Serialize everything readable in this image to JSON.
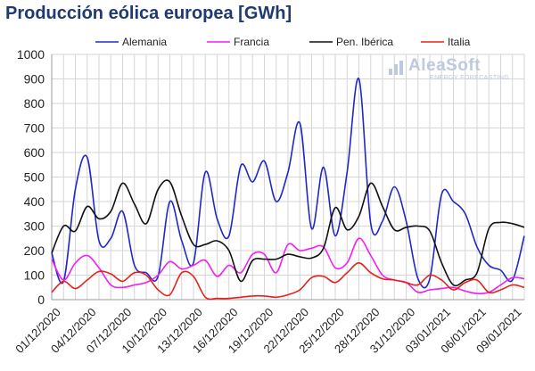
{
  "title": "Producción eólica europea [GWh]",
  "logo": {
    "name": "AleaSoft",
    "tagline": "ENERGY FORECASTING"
  },
  "colors": {
    "alemania": "#2028c8",
    "francia": "#f21ef2",
    "iberica": "#111111",
    "italia": "#e8201a",
    "grid": "#d6d6d6",
    "axis": "#999999",
    "logo": "#bcc9de"
  },
  "chart_data": {
    "type": "line",
    "title": "Producción eólica europea [GWh]",
    "xlabel": "",
    "ylabel": "",
    "ylim": [
      0,
      1000
    ],
    "yticks": [
      0,
      100,
      200,
      300,
      400,
      500,
      600,
      700,
      800,
      900,
      1000
    ],
    "x": [
      "01/12/2020",
      "02/12/2020",
      "03/12/2020",
      "04/12/2020",
      "05/12/2020",
      "06/12/2020",
      "07/12/2020",
      "08/12/2020",
      "09/12/2020",
      "10/12/2020",
      "11/12/2020",
      "12/12/2020",
      "13/12/2020",
      "14/12/2020",
      "15/12/2020",
      "16/12/2020",
      "17/12/2020",
      "18/12/2020",
      "19/12/2020",
      "20/12/2020",
      "21/12/2020",
      "22/12/2020",
      "23/12/2020",
      "24/12/2020",
      "25/12/2020",
      "26/12/2020",
      "27/12/2020",
      "28/12/2020",
      "29/12/2020",
      "30/12/2020",
      "31/12/2020",
      "01/01/2021",
      "02/01/2021",
      "03/01/2021",
      "04/01/2021",
      "05/01/2021",
      "06/01/2021",
      "07/01/2021",
      "08/01/2021",
      "09/01/2021",
      "10/01/2021"
    ],
    "xtick_labels": [
      "01/12/2020",
      "04/12/2020",
      "07/12/2020",
      "10/12/2020",
      "13/12/2020",
      "16/12/2020",
      "19/12/2020",
      "22/12/2020",
      "25/12/2020",
      "28/12/2020",
      "31/12/2020",
      "03/01/2021",
      "06/01/2021",
      "09/01/2021"
    ],
    "grid": true,
    "legend_position": "top",
    "series": [
      {
        "name": "Alemania",
        "color": "#2028c8",
        "values": [
          190,
          75,
          450,
          580,
          240,
          250,
          360,
          140,
          110,
          95,
          400,
          240,
          150,
          520,
          330,
          260,
          545,
          480,
          565,
          400,
          520,
          720,
          290,
          540,
          260,
          520,
          900,
          310,
          320,
          460,
          320,
          85,
          85,
          430,
          400,
          350,
          215,
          140,
          120,
          80,
          260
        ]
      },
      {
        "name": "Francia",
        "color": "#f21ef2",
        "values": [
          165,
          80,
          150,
          180,
          130,
          60,
          50,
          60,
          70,
          100,
          155,
          125,
          140,
          160,
          95,
          140,
          110,
          185,
          185,
          110,
          225,
          200,
          210,
          215,
          130,
          150,
          250,
          180,
          100,
          80,
          70,
          30,
          40,
          45,
          50,
          35,
          25,
          30,
          60,
          90,
          85
        ]
      },
      {
        "name": "Pen. Ibérica",
        "color": "#111111",
        "values": [
          190,
          300,
          280,
          380,
          330,
          360,
          475,
          390,
          310,
          450,
          480,
          340,
          225,
          225,
          240,
          200,
          75,
          160,
          165,
          165,
          185,
          175,
          170,
          210,
          375,
          285,
          340,
          475,
          380,
          285,
          295,
          300,
          280,
          150,
          60,
          80,
          110,
          290,
          315,
          310,
          295
        ]
      },
      {
        "name": "Italia",
        "color": "#e8201a",
        "values": [
          30,
          75,
          45,
          80,
          115,
          105,
          75,
          110,
          100,
          40,
          20,
          110,
          95,
          10,
          5,
          5,
          10,
          15,
          15,
          10,
          20,
          40,
          90,
          95,
          70,
          110,
          150,
          110,
          85,
          80,
          70,
          60,
          100,
          80,
          40,
          70,
          80,
          30,
          40,
          60,
          50
        ]
      }
    ]
  }
}
